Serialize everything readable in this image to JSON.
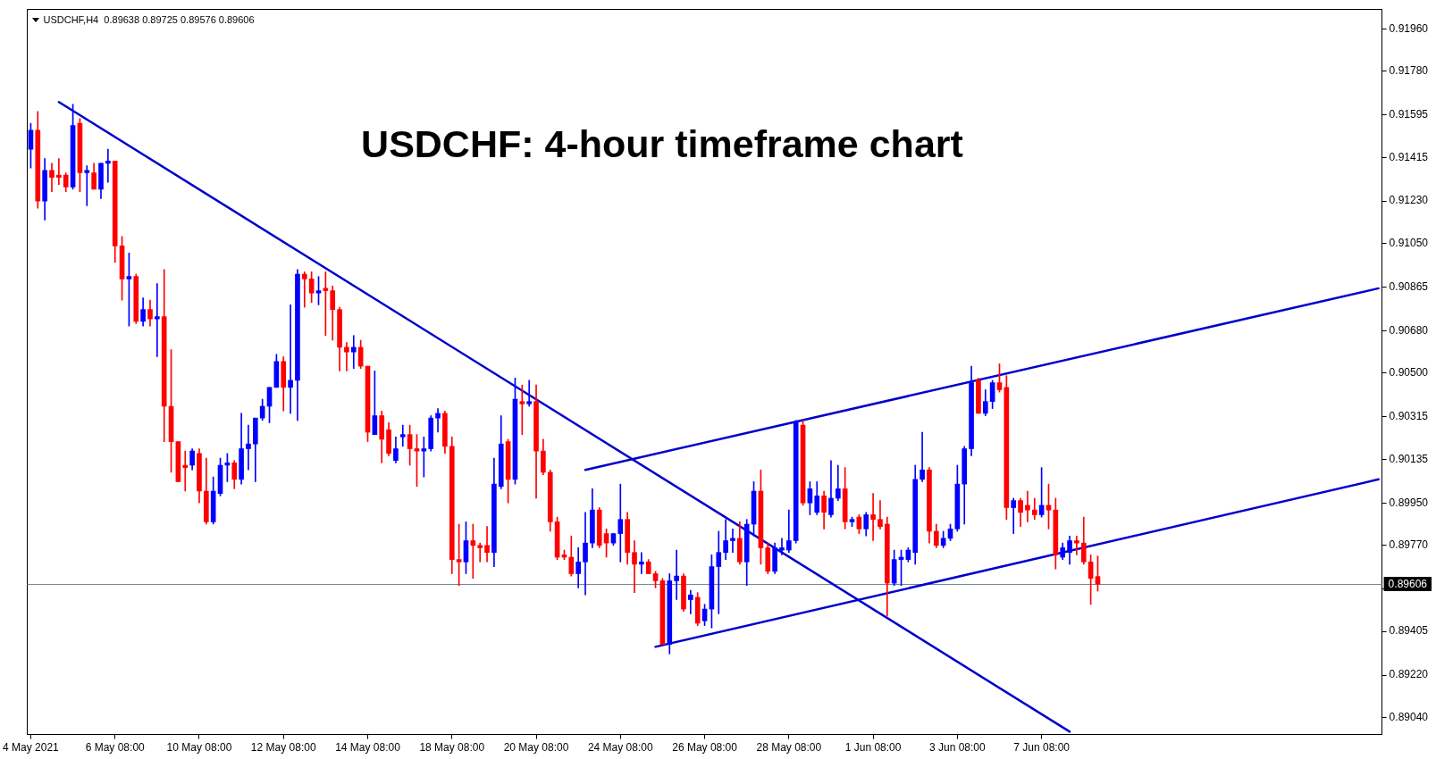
{
  "chart_data": {
    "type": "candlestick",
    "title": "USDCHF: 4-hour timeframe chart",
    "annotations": [
      "USDCHF,H4  0.89638 0.89725 0.89576 0.89606"
    ],
    "categories": [
      "4 May 2021",
      null,
      null,
      null,
      null,
      null,
      null,
      null,
      null,
      null,
      null,
      null,
      "6 May 08:00",
      null,
      null,
      null,
      null,
      null,
      null,
      null,
      null,
      null,
      null,
      null,
      "10 May 08:00",
      null,
      null,
      null,
      null,
      null,
      null,
      null,
      null,
      null,
      null,
      null,
      "12 May 08:00",
      null,
      null,
      null,
      null,
      null,
      null,
      null,
      null,
      null,
      null,
      null,
      "14 May 08:00",
      null,
      null,
      null,
      null,
      null,
      null,
      null,
      null,
      null,
      null,
      null,
      "18 May 08:00",
      null,
      null,
      null,
      null,
      null,
      null,
      null,
      null,
      null,
      null,
      null,
      "20 May 08:00",
      null,
      null,
      null,
      null,
      null,
      null,
      null,
      null,
      null,
      null,
      null,
      "24 May 08:00",
      null,
      null,
      null,
      null,
      null,
      null,
      null,
      null,
      null,
      null,
      null,
      "26 May 08:00",
      null,
      null,
      null,
      null,
      null,
      null,
      null,
      null,
      null,
      null,
      null,
      "28 May 08:00",
      null,
      null,
      null,
      null,
      null,
      null,
      null,
      null,
      null,
      null,
      null,
      "1 Jun 08:00",
      null,
      null,
      null,
      null,
      null,
      null,
      null,
      null,
      null,
      null,
      null,
      "3 Jun 08:00",
      null,
      null,
      null,
      null,
      null,
      null,
      null,
      null,
      null,
      null,
      null,
      "7 Jun 08:00",
      null,
      null,
      null,
      null,
      null,
      null,
      null,
      null,
      null,
      null,
      null,
      null,
      null,
      null,
      null,
      null,
      null,
      null,
      null,
      null,
      null,
      null,
      null,
      null,
      null,
      null,
      null,
      null,
      null,
      null,
      null,
      null,
      null,
      null,
      null,
      null,
      null,
      null,
      null,
      null,
      null,
      null,
      null,
      null,
      null,
      null,
      null,
      null
    ],
    "ylim": [
      0.88968,
      0.92044
    ],
    "yticks": [
      {
        "value": 0.9196,
        "label": "0.91960"
      },
      {
        "value": 0.9178,
        "label": "0.91780"
      },
      {
        "value": 0.91595,
        "label": "0.91595"
      },
      {
        "value": 0.91415,
        "label": "0.91415"
      },
      {
        "value": 0.9123,
        "label": "0.91230"
      },
      {
        "value": 0.9105,
        "label": "0.91050"
      },
      {
        "value": 0.90865,
        "label": "0.90865"
      },
      {
        "value": 0.9068,
        "label": "0.90680"
      },
      {
        "value": 0.905,
        "label": "0.90500"
      },
      {
        "value": 0.90315,
        "label": "0.90315"
      },
      {
        "value": 0.90135,
        "label": "0.90135"
      },
      {
        "value": 0.8995,
        "label": "0.89950"
      },
      {
        "value": 0.8977,
        "label": "0.89770"
      },
      {
        "value": 0.89585,
        "label": null
      },
      {
        "value": 0.89405,
        "label": "0.89405"
      },
      {
        "value": 0.8922,
        "label": "0.89220"
      },
      {
        "value": 0.8904,
        "label": "0.89040"
      }
    ],
    "ref_lines": [
      {
        "axis": "y",
        "value": 0.89606,
        "label": "0.89606",
        "color": "#778899"
      }
    ],
    "series": [
      {
        "ohlc": [
          [
            0.9145,
            0.9156,
            0.9137,
            0.9153
          ],
          [
            0.9153,
            0.9161,
            0.912,
            0.9123
          ],
          [
            0.9123,
            0.9141,
            0.9115,
            0.9136
          ],
          [
            0.9136,
            0.9139,
            0.9127,
            0.9133
          ],
          [
            0.9134,
            0.9141,
            0.913,
            0.9133
          ],
          [
            0.9134,
            0.9135,
            0.9127,
            0.9129
          ],
          [
            0.9129,
            0.9164,
            0.9128,
            0.9155
          ],
          [
            0.9156,
            0.9158,
            0.9127,
            0.9135
          ],
          [
            0.9135,
            0.9138,
            0.9121,
            0.9136
          ],
          [
            0.9135,
            0.9139,
            0.9128,
            0.9128
          ],
          [
            0.9128,
            0.9139,
            0.9124,
            0.9139
          ],
          [
            0.9139,
            0.9145,
            0.9131,
            0.914
          ],
          [
            0.914,
            0.914,
            0.9097,
            0.9104
          ],
          [
            0.9104,
            0.9108,
            0.9081,
            0.909
          ],
          [
            0.909,
            0.9101,
            0.907,
            0.9091
          ],
          [
            0.9091,
            0.9092,
            0.9071,
            0.9072
          ],
          [
            0.9072,
            0.9082,
            0.907,
            0.9077
          ],
          [
            0.9077,
            0.9081,
            0.907,
            0.9073
          ],
          [
            0.9073,
            0.9088,
            0.9057,
            0.9074
          ],
          [
            0.9074,
            0.9094,
            0.9021,
            0.9036
          ],
          [
            0.9036,
            0.906,
            0.9008,
            0.9021
          ],
          [
            0.9021,
            0.9021,
            0.9004,
            0.9004
          ],
          [
            0.9011,
            0.9017,
            0.9,
            0.901
          ],
          [
            0.9011,
            0.9018,
            0.9009,
            0.9017
          ],
          [
            0.9016,
            0.9018,
            0.8995,
            0.9
          ],
          [
            0.9,
            0.9014,
            0.8986,
            0.8987
          ],
          [
            0.8987,
            0.9006,
            0.8986,
            0.9
          ],
          [
            0.8999,
            0.9014,
            0.8998,
            0.9011
          ],
          [
            0.9011,
            0.9016,
            0.9004,
            0.9012
          ],
          [
            0.9012,
            0.9013,
            0.9001,
            0.9005
          ],
          [
            0.9005,
            0.9033,
            0.9003,
            0.9018
          ],
          [
            0.9018,
            0.9028,
            0.9009,
            0.902
          ],
          [
            0.902,
            0.9031,
            0.9004,
            0.9031
          ],
          [
            0.9031,
            0.9039,
            0.903,
            0.9036
          ],
          [
            0.9036,
            0.9044,
            0.9029,
            0.9044
          ],
          [
            0.9044,
            0.9058,
            0.9044,
            0.9055
          ],
          [
            0.9055,
            0.9057,
            0.9034,
            0.9044
          ],
          [
            0.9044,
            0.9079,
            0.9033,
            0.9047
          ],
          [
            0.9047,
            0.9094,
            0.903,
            0.9092
          ],
          [
            0.9092,
            0.9093,
            0.9078,
            0.909
          ],
          [
            0.909,
            0.9093,
            0.908,
            0.9084
          ],
          [
            0.9084,
            0.9091,
            0.9079,
            0.9085
          ],
          [
            0.9086,
            0.9093,
            0.9066,
            0.9085
          ],
          [
            0.9085,
            0.9087,
            0.9064,
            0.9077
          ],
          [
            0.9077,
            0.9078,
            0.9051,
            0.9061
          ],
          [
            0.9061,
            0.9063,
            0.9051,
            0.9059
          ],
          [
            0.9059,
            0.9066,
            0.9052,
            0.9061
          ],
          [
            0.9061,
            0.9064,
            0.9052,
            0.9053
          ],
          [
            0.9053,
            0.9053,
            0.9021,
            0.9025
          ],
          [
            0.9024,
            0.9051,
            0.9024,
            0.9032
          ],
          [
            0.9032,
            0.9034,
            0.9012,
            0.9022
          ],
          [
            0.9026,
            0.9029,
            0.9015,
            0.9016
          ],
          [
            0.9013,
            0.9023,
            0.9012,
            0.9018
          ],
          [
            0.9023,
            0.9028,
            0.9019,
            0.9024
          ],
          [
            0.9024,
            0.9028,
            0.9011,
            0.9018
          ],
          [
            0.9018,
            0.9024,
            0.9002,
            0.9017
          ],
          [
            0.9017,
            0.9023,
            0.9006,
            0.9018
          ],
          [
            0.9018,
            0.9032,
            0.9017,
            0.9031
          ],
          [
            0.9031,
            0.9035,
            0.9025,
            0.9033
          ],
          [
            0.9033,
            0.9034,
            0.9016,
            0.9019
          ],
          [
            0.9019,
            0.9023,
            0.8965,
            0.8971
          ],
          [
            0.8971,
            0.8986,
            0.896,
            0.897
          ],
          [
            0.897,
            0.8987,
            0.8965,
            0.8979
          ],
          [
            0.8979,
            0.8986,
            0.8963,
            0.8977
          ],
          [
            0.8977,
            0.8978,
            0.897,
            0.8976
          ],
          [
            0.8977,
            0.8985,
            0.897,
            0.8974
          ],
          [
            0.8974,
            0.9014,
            0.8968,
            0.9003
          ],
          [
            0.9002,
            0.9032,
            0.9001,
            0.902
          ],
          [
            0.9021,
            0.9022,
            0.8995,
            0.9005
          ],
          [
            0.9005,
            0.9048,
            0.9003,
            0.9039
          ],
          [
            0.9038,
            0.9045,
            0.9024,
            0.9037
          ],
          [
            0.9037,
            0.9047,
            0.9036,
            0.9038
          ],
          [
            0.9038,
            0.9045,
            0.8997,
            0.9017
          ],
          [
            0.9017,
            0.9022,
            0.9007,
            0.9008
          ],
          [
            0.9008,
            0.9009,
            0.8983,
            0.8987
          ],
          [
            0.8987,
            0.8989,
            0.8971,
            0.8972
          ],
          [
            0.8973,
            0.8975,
            0.8971,
            0.8972
          ],
          [
            0.8972,
            0.8981,
            0.8964,
            0.8965
          ],
          [
            0.8965,
            0.8976,
            0.8959,
            0.897
          ],
          [
            0.897,
            0.8991,
            0.8956,
            0.8978
          ],
          [
            0.8978,
            0.9001,
            0.8976,
            0.8992
          ],
          [
            0.8992,
            0.8993,
            0.8976,
            0.8977
          ],
          [
            0.8982,
            0.8984,
            0.8972,
            0.8978
          ],
          [
            0.8978,
            0.8982,
            0.8977,
            0.8982
          ],
          [
            0.8982,
            0.9003,
            0.897,
            0.8988
          ],
          [
            0.8988,
            0.8991,
            0.8969,
            0.8974
          ],
          [
            0.8974,
            0.8979,
            0.8957,
            0.8969
          ],
          [
            0.8969,
            0.8974,
            0.8965,
            0.897
          ],
          [
            0.897,
            0.8971,
            0.8965,
            0.8965
          ],
          [
            0.8965,
            0.8966,
            0.8959,
            0.8962
          ],
          [
            0.8962,
            0.8963,
            0.8935,
            0.8935
          ],
          [
            0.8935,
            0.8965,
            0.8931,
            0.8962
          ],
          [
            0.8962,
            0.8975,
            0.8954,
            0.8964
          ],
          [
            0.8964,
            0.8965,
            0.8949,
            0.895
          ],
          [
            0.8954,
            0.8958,
            0.8948,
            0.8956
          ],
          [
            0.8955,
            0.8957,
            0.8943,
            0.8944
          ],
          [
            0.8945,
            0.8952,
            0.8943,
            0.895
          ],
          [
            0.895,
            0.8973,
            0.8942,
            0.8968
          ],
          [
            0.8968,
            0.8983,
            0.8948,
            0.8974
          ],
          [
            0.8974,
            0.8988,
            0.8971,
            0.8979
          ],
          [
            0.8979,
            0.8984,
            0.8974,
            0.898
          ],
          [
            0.898,
            0.8987,
            0.8969,
            0.897
          ],
          [
            0.897,
            0.8988,
            0.896,
            0.8986
          ],
          [
            0.8986,
            0.9004,
            0.8981,
            0.9
          ],
          [
            0.9,
            0.9009,
            0.8969,
            0.8976
          ],
          [
            0.8976,
            0.8978,
            0.8965,
            0.8966
          ],
          [
            0.8966,
            0.8978,
            0.8965,
            0.8976
          ],
          [
            0.8975,
            0.898,
            0.8973,
            0.8976
          ],
          [
            0.8975,
            0.8992,
            0.8974,
            0.8979
          ],
          [
            0.8979,
            0.903,
            0.8978,
            0.9029
          ],
          [
            0.9028,
            0.903,
            0.8994,
            0.8995
          ],
          [
            0.8995,
            0.9004,
            0.899,
            0.9001
          ],
          [
            0.8991,
            0.9004,
            0.899,
            0.8998
          ],
          [
            0.8998,
            0.9,
            0.8984,
            0.8991
          ],
          [
            0.899,
            0.9013,
            0.8989,
            0.8997
          ],
          [
            0.8997,
            0.9011,
            0.8996,
            0.9001
          ],
          [
            0.9001,
            0.901,
            0.8984,
            0.8987
          ],
          [
            0.8987,
            0.8989,
            0.8985,
            0.8988
          ],
          [
            0.8989,
            0.899,
            0.8982,
            0.8984
          ],
          [
            0.8984,
            0.8991,
            0.8981,
            0.899
          ],
          [
            0.899,
            0.8999,
            0.8979,
            0.8988
          ],
          [
            0.8988,
            0.8996,
            0.8984,
            0.8985
          ],
          [
            0.8986,
            0.8989,
            0.8947,
            0.8961
          ],
          [
            0.8961,
            0.8975,
            0.896,
            0.8971
          ],
          [
            0.8971,
            0.8975,
            0.896,
            0.8972
          ],
          [
            0.8971,
            0.8976,
            0.897,
            0.8975
          ],
          [
            0.8974,
            0.9011,
            0.8969,
            0.9005
          ],
          [
            0.9005,
            0.9025,
            0.9004,
            0.9009
          ],
          [
            0.9009,
            0.901,
            0.8978,
            0.8983
          ],
          [
            0.8983,
            0.8986,
            0.8976,
            0.8977
          ],
          [
            0.8977,
            0.8983,
            0.8976,
            0.898
          ],
          [
            0.898,
            0.8986,
            0.8979,
            0.8984
          ],
          [
            0.8984,
            0.9011,
            0.8983,
            0.9003
          ],
          [
            0.9003,
            0.9019,
            0.8986,
            0.9018
          ],
          [
            0.9018,
            0.9053,
            0.9015,
            0.9046
          ],
          [
            0.9047,
            0.9048,
            0.9033,
            0.9033
          ],
          [
            0.9033,
            0.9043,
            0.9032,
            0.9038
          ],
          [
            0.9038,
            0.9047,
            0.9035,
            0.9046
          ],
          [
            0.9046,
            0.9054,
            0.9042,
            0.9043
          ],
          [
            0.9044,
            0.9049,
            0.8988,
            0.8993
          ],
          [
            0.8993,
            0.8997,
            0.8982,
            0.8996
          ],
          [
            0.8996,
            0.8997,
            0.8985,
            0.8991
          ],
          [
            0.8994,
            0.9,
            0.8987,
            0.8992
          ],
          [
            0.8992,
            0.8997,
            0.8988,
            0.899
          ],
          [
            0.899,
            0.901,
            0.8989,
            0.8994
          ],
          [
            0.8994,
            0.9003,
            0.8984,
            0.8992
          ],
          [
            0.8992,
            0.8997,
            0.8967,
            0.8973
          ],
          [
            0.8972,
            0.8978,
            0.8971,
            0.8976
          ],
          [
            0.8974,
            0.8981,
            0.8969,
            0.8979
          ],
          [
            0.8979,
            0.8981,
            0.8973,
            0.8978
          ],
          [
            0.8978,
            0.8989,
            0.8969,
            0.897
          ],
          [
            0.897,
            0.8973,
            0.8952,
            0.8963
          ],
          [
            0.89638,
            0.89725,
            0.89576,
            0.89606
          ],
          null,
          null,
          null,
          null,
          null,
          null,
          null,
          null,
          null,
          null,
          null,
          null,
          null,
          null,
          null,
          null,
          null,
          null,
          null,
          null,
          null,
          null,
          null,
          null,
          null,
          null,
          null,
          null,
          null,
          null,
          null,
          null,
          null,
          null,
          null,
          null,
          null,
          null,
          null,
          null
        ],
        "colors": [
          "#0000ff",
          "#ff0000",
          "#0000ff",
          "#ff0000",
          "#ff0000",
          "#ff0000",
          "#0000ff",
          "#ff0000",
          "#0000ff",
          "#ff0000",
          "#0000ff",
          "#0000ff",
          "#ff0000",
          "#ff0000",
          "#0000ff",
          "#ff0000",
          "#0000ff",
          "#ff0000",
          "#0000ff",
          "#ff0000",
          "#ff0000",
          "#ff0000",
          "#ff0000",
          "#0000ff",
          "#ff0000",
          "#ff0000",
          "#0000ff",
          "#0000ff",
          "#0000ff",
          "#ff0000",
          "#0000ff",
          "#0000ff",
          "#0000ff",
          "#0000ff",
          "#0000ff",
          "#0000ff",
          "#ff0000",
          "#0000ff",
          "#0000ff",
          "#ff0000",
          "#ff0000",
          "#0000ff",
          "#ff0000",
          "#ff0000",
          "#ff0000",
          "#ff0000",
          "#0000ff",
          "#ff0000",
          "#ff0000",
          "#0000ff",
          "#ff0000",
          "#ff0000",
          "#0000ff",
          "#0000ff",
          "#ff0000",
          "#ff0000",
          "#0000ff",
          "#0000ff",
          "#0000ff",
          "#ff0000",
          "#ff0000",
          "#ff0000",
          "#0000ff",
          "#ff0000",
          "#ff0000",
          "#ff0000",
          "#0000ff",
          "#0000ff",
          "#ff0000",
          "#0000ff",
          "#ff0000",
          "#0000ff",
          "#ff0000",
          "#ff0000",
          "#ff0000",
          "#ff0000",
          "#ff0000",
          "#ff0000",
          "#0000ff",
          "#0000ff",
          "#0000ff",
          "#ff0000",
          "#ff0000",
          "#0000ff",
          "#0000ff",
          "#ff0000",
          "#ff0000",
          "#0000ff",
          "#ff0000",
          "#ff0000",
          "#ff0000",
          "#0000ff",
          "#0000ff",
          "#ff0000",
          "#0000ff",
          "#ff0000",
          "#0000ff",
          "#0000ff",
          "#0000ff",
          "#0000ff",
          "#0000ff",
          "#ff0000",
          "#0000ff",
          "#0000ff",
          "#ff0000",
          "#ff0000",
          "#0000ff",
          "#0000ff",
          "#0000ff",
          "#0000ff",
          "#ff0000",
          "#0000ff",
          "#0000ff",
          "#ff0000",
          "#0000ff",
          "#0000ff",
          "#ff0000",
          "#0000ff",
          "#ff0000",
          "#0000ff",
          "#ff0000",
          "#ff0000",
          "#ff0000",
          "#0000ff",
          "#0000ff",
          "#0000ff",
          "#0000ff",
          "#0000ff",
          "#ff0000",
          "#ff0000",
          "#0000ff",
          "#0000ff",
          "#0000ff",
          "#0000ff",
          "#0000ff",
          "#ff0000",
          "#0000ff",
          "#0000ff",
          "#ff0000",
          "#ff0000",
          "#0000ff",
          "#ff0000",
          "#ff0000",
          "#ff0000",
          "#0000ff",
          "#ff0000",
          "#ff0000",
          "#0000ff",
          "#0000ff",
          "#ff0000",
          "#ff0000",
          "#ff0000",
          "#ff0000",
          null,
          null,
          null,
          null,
          null,
          null,
          null,
          null,
          null,
          null,
          null,
          null,
          null,
          null,
          null,
          null,
          null,
          null,
          null,
          null,
          null,
          null,
          null,
          null,
          null,
          null,
          null,
          null,
          null,
          null,
          null,
          null,
          null,
          null,
          null,
          null,
          null,
          null,
          null,
          null
        ]
      },
      {
        "type": "line",
        "color": "#0000cd",
        "values": [
          null,
          null,
          null,
          null,
          0.9165,
          null,
          null,
          null,
          null,
          null,
          null,
          null,
          null,
          null,
          null,
          null,
          null,
          null,
          null,
          null,
          null,
          null,
          null,
          null,
          null,
          null,
          null,
          null,
          null,
          null,
          null,
          null,
          null,
          null,
          null,
          null,
          null,
          null,
          null,
          null,
          null,
          null,
          null,
          null,
          null,
          null,
          null,
          null,
          null,
          null,
          null,
          null,
          null,
          null,
          null,
          null,
          null,
          null,
          null,
          null,
          null,
          null,
          null,
          null,
          null,
          null,
          null,
          null,
          null,
          null,
          null,
          null,
          null,
          null,
          null,
          null,
          null,
          null,
          null,
          null,
          null,
          null,
          null,
          null,
          null,
          null,
          null,
          null,
          null,
          null,
          null,
          null,
          null,
          null,
          null,
          null,
          null,
          null,
          null,
          null,
          null,
          null,
          null,
          null,
          null,
          null,
          null,
          null,
          null,
          null,
          null,
          null,
          null,
          null,
          null,
          null,
          null,
          null,
          null,
          null,
          null,
          null,
          null,
          null,
          null,
          null,
          null,
          null,
          null,
          null,
          null,
          null,
          null,
          null,
          null,
          null,
          null,
          null,
          null,
          null,
          null,
          null,
          null,
          null,
          null,
          null,
          null,
          null,
          0.8898,
          null,
          null,
          null,
          null,
          null,
          null,
          null,
          null,
          null,
          null,
          null,
          null,
          null,
          null,
          null,
          null,
          null,
          null,
          null,
          null,
          null,
          null,
          null,
          null,
          null,
          null,
          null,
          null,
          null,
          null,
          null,
          null,
          null,
          null,
          null,
          null,
          null,
          null,
          null,
          null,
          null,
          null,
          null,
          null
        ]
      },
      {
        "type": "line",
        "color": "#0000cd",
        "values": [
          null,
          null,
          null,
          null,
          null,
          null,
          null,
          null,
          null,
          null,
          null,
          null,
          null,
          null,
          null,
          null,
          null,
          null,
          null,
          null,
          null,
          null,
          null,
          null,
          null,
          null,
          null,
          null,
          null,
          null,
          null,
          null,
          null,
          null,
          null,
          null,
          null,
          null,
          null,
          null,
          null,
          null,
          null,
          null,
          null,
          null,
          null,
          null,
          null,
          null,
          null,
          null,
          null,
          null,
          null,
          null,
          null,
          null,
          null,
          null,
          null,
          null,
          null,
          null,
          null,
          null,
          null,
          null,
          null,
          null,
          null,
          null,
          null,
          null,
          null,
          null,
          null,
          null,
          null,
          0.9009,
          null,
          null,
          null,
          null,
          null,
          null,
          null,
          null,
          null,
          null,
          null,
          null,
          null,
          null,
          null,
          null,
          null,
          null,
          null,
          null,
          null,
          null,
          null,
          null,
          null,
          null,
          null,
          null,
          null,
          null,
          null,
          null,
          null,
          null,
          null,
          null,
          null,
          null,
          null,
          null,
          null,
          null,
          null,
          null,
          null,
          null,
          null,
          null,
          null,
          null,
          null,
          null,
          null,
          null,
          null,
          null,
          null,
          null,
          null,
          null,
          null,
          null,
          null,
          null,
          null,
          null,
          null,
          null,
          null,
          null,
          null,
          null,
          null,
          null,
          null,
          null,
          null,
          null,
          null,
          null,
          null,
          null,
          null,
          null,
          null,
          null,
          null,
          null,
          null,
          null,
          null,
          null,
          null,
          null,
          null,
          null,
          null,
          null,
          null,
          null,
          null,
          null,
          null,
          null,
          null,
          null,
          null,
          null,
          null,
          null,
          null,
          null,
          0.9086
        ]
      },
      {
        "type": "line",
        "color": "#0000cd",
        "values": [
          null,
          null,
          null,
          null,
          null,
          null,
          null,
          null,
          null,
          null,
          null,
          null,
          null,
          null,
          null,
          null,
          null,
          null,
          null,
          null,
          null,
          null,
          null,
          null,
          null,
          null,
          null,
          null,
          null,
          null,
          null,
          null,
          null,
          null,
          null,
          null,
          null,
          null,
          null,
          null,
          null,
          null,
          null,
          null,
          null,
          null,
          null,
          null,
          null,
          null,
          null,
          null,
          null,
          null,
          null,
          null,
          null,
          null,
          null,
          null,
          null,
          null,
          null,
          null,
          null,
          null,
          null,
          null,
          null,
          null,
          null,
          null,
          null,
          null,
          null,
          null,
          null,
          null,
          null,
          null,
          null,
          null,
          null,
          null,
          null,
          null,
          null,
          null,
          null,
          0.8934,
          null,
          null,
          null,
          null,
          null,
          null,
          null,
          null,
          null,
          null,
          null,
          null,
          null,
          null,
          null,
          null,
          null,
          null,
          null,
          null,
          null,
          null,
          null,
          null,
          null,
          null,
          null,
          null,
          null,
          null,
          null,
          null,
          null,
          null,
          null,
          null,
          null,
          null,
          null,
          null,
          null,
          null,
          null,
          null,
          null,
          null,
          null,
          null,
          null,
          null,
          null,
          null,
          null,
          null,
          null,
          null,
          null,
          null,
          null,
          null,
          null,
          null,
          null,
          null,
          null,
          null,
          null,
          null,
          null,
          null,
          null,
          null,
          null,
          null,
          null,
          null,
          null,
          null,
          null,
          null,
          null,
          null,
          null,
          null,
          null,
          null,
          null,
          null,
          null,
          null,
          null,
          null,
          null,
          null,
          null,
          null,
          null,
          null,
          null,
          null,
          null,
          null,
          0.9005
        ]
      }
    ]
  }
}
